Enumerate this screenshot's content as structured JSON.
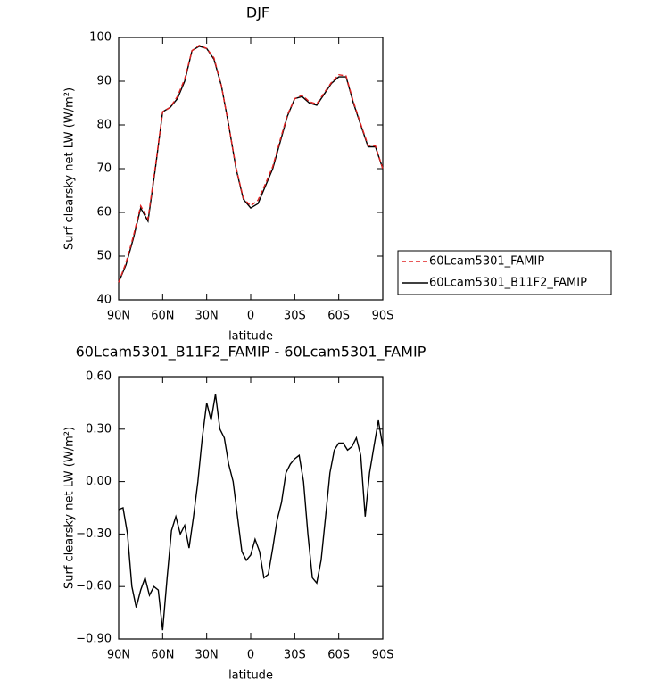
{
  "chart_data": [
    {
      "type": "line",
      "title": "DJF",
      "xlabel": "latitude",
      "ylabel": "Surf clearsky net LW (W/m²)",
      "x": [
        90,
        85,
        80,
        75,
        70,
        65,
        60,
        55,
        50,
        45,
        40,
        35,
        30,
        25,
        20,
        15,
        10,
        5,
        0,
        -5,
        -10,
        -15,
        -20,
        -25,
        -30,
        -35,
        -40,
        -45,
        -50,
        -55,
        -60,
        -65,
        -70,
        -75,
        -80,
        -85,
        -90
      ],
      "series": [
        {
          "name": "60Lcam5301_FAMIP",
          "color": "#e02020",
          "dash": true,
          "values": [
            44,
            48.5,
            54.5,
            61.5,
            58.5,
            70.5,
            83,
            84,
            86.5,
            90.5,
            97,
            98.2,
            97.5,
            95.3,
            89,
            80,
            70.2,
            63.2,
            61.5,
            62.8,
            66.5,
            70.5,
            76.5,
            82.3,
            86,
            86.8,
            85.3,
            84.8,
            87.3,
            89.7,
            91.5,
            91.2,
            85.3,
            80.2,
            75.3,
            75.2,
            70
          ]
        },
        {
          "name": "60Lcam5301_B11F2_FAMIP",
          "color": "#000000",
          "dash": false,
          "values": [
            44,
            48,
            54,
            61,
            58,
            70,
            83,
            84,
            86,
            90,
            97,
            98,
            97.5,
            95,
            89,
            80,
            70,
            63,
            61,
            62,
            66,
            70,
            76,
            82,
            86,
            86.5,
            85,
            84.5,
            87,
            89.5,
            91,
            91,
            85,
            80,
            75,
            75,
            70
          ]
        }
      ],
      "xlim": [
        90,
        -90
      ],
      "xticks": [
        {
          "value": 90,
          "label": "90N"
        },
        {
          "value": 60,
          "label": "60N"
        },
        {
          "value": 30,
          "label": "30N"
        },
        0,
        {
          "value": -30,
          "label": "30S"
        },
        {
          "value": -60,
          "label": "60S"
        },
        {
          "value": -90,
          "label": "90S"
        }
      ],
      "ylim": [
        40,
        100
      ],
      "yticks": [
        40,
        50,
        60,
        70,
        80,
        90,
        100
      ],
      "legend_position": "right"
    },
    {
      "type": "line",
      "title": "60Lcam5301_B11F2_FAMIP - 60Lcam5301_FAMIP",
      "xlabel": "latitude",
      "ylabel": "Surf clearsky net LW (W/m²)",
      "x": [
        90,
        87,
        84,
        81,
        78,
        75,
        72,
        69,
        66,
        63,
        60,
        57,
        54,
        51,
        48,
        45,
        42,
        39,
        36,
        33,
        30,
        27,
        24,
        21,
        18,
        15,
        12,
        9,
        6,
        3,
        0,
        -3,
        -6,
        -9,
        -12,
        -15,
        -18,
        -21,
        -24,
        -27,
        -30,
        -33,
        -36,
        -39,
        -42,
        -45,
        -48,
        -51,
        -54,
        -57,
        -60,
        -63,
        -66,
        -69,
        -72,
        -75,
        -78,
        -81,
        -84,
        -87,
        -90
      ],
      "series": [
        {
          "color": "#000000",
          "dash": false,
          "values": [
            -0.16,
            -0.15,
            -0.3,
            -0.6,
            -0.72,
            -0.62,
            -0.55,
            -0.65,
            -0.6,
            -0.62,
            -0.85,
            -0.55,
            -0.28,
            -0.2,
            -0.3,
            -0.25,
            -0.38,
            -0.2,
            0.0,
            0.25,
            0.45,
            0.35,
            0.5,
            0.3,
            0.25,
            0.1,
            0.0,
            -0.2,
            -0.4,
            -0.45,
            -0.42,
            -0.33,
            -0.4,
            -0.55,
            -0.53,
            -0.38,
            -0.22,
            -0.12,
            0.05,
            0.1,
            0.13,
            0.15,
            0.0,
            -0.3,
            -0.55,
            -0.58,
            -0.45,
            -0.2,
            0.05,
            0.18,
            0.22,
            0.22,
            0.18,
            0.2,
            0.25,
            0.15,
            -0.2,
            0.05,
            0.2,
            0.35,
            0.2
          ]
        }
      ],
      "xlim": [
        90,
        -90
      ],
      "xticks": [
        {
          "value": 90,
          "label": "90N"
        },
        {
          "value": 60,
          "label": "60N"
        },
        {
          "value": 30,
          "label": "30N"
        },
        0,
        {
          "value": -30,
          "label": "30S"
        },
        {
          "value": -60,
          "label": "60S"
        },
        {
          "value": -90,
          "label": "90S"
        }
      ],
      "ylim": [
        -0.9,
        0.6
      ],
      "yticks": [
        {
          "value": -0.9,
          "label": "−0.90"
        },
        {
          "value": -0.6,
          "label": "−0.60"
        },
        {
          "value": -0.3,
          "label": "−0.30"
        },
        {
          "value": 0,
          "label": "0.00"
        },
        {
          "value": 0.3,
          "label": "0.30"
        },
        {
          "value": 0.6,
          "label": "0.60"
        }
      ]
    }
  ]
}
